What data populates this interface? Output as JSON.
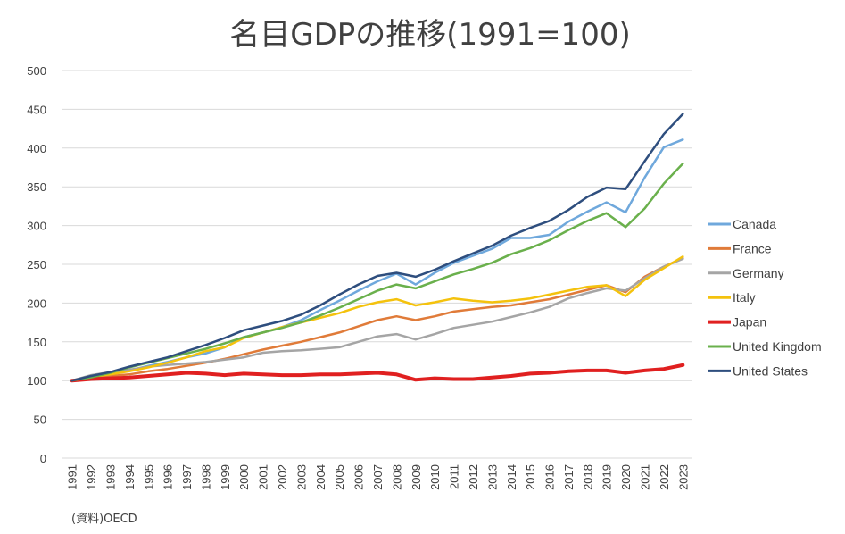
{
  "chart_data": {
    "type": "line",
    "title": "名目GDPの推移(1991=100)",
    "source_note": "(資料)OECD",
    "xlabel": "",
    "ylabel": "",
    "ylim": [
      0,
      500
    ],
    "y_ticks": [
      0,
      50,
      100,
      150,
      200,
      250,
      300,
      350,
      400,
      450,
      500
    ],
    "grid": true,
    "legend_position": "right",
    "x": [
      "1991",
      "1992",
      "1993",
      "1994",
      "1995",
      "1996",
      "1997",
      "1998",
      "1999",
      "2000",
      "2001",
      "2002",
      "2003",
      "2004",
      "2005",
      "2006",
      "2007",
      "2008",
      "2009",
      "2010",
      "2011",
      "2012",
      "2013",
      "2014",
      "2015",
      "2016",
      "2017",
      "2018",
      "2019",
      "2020",
      "2021",
      "2022",
      "2023"
    ],
    "series": [
      {
        "name": "Canada",
        "color": "#6fa8dc",
        "values": [
          100,
          103,
          108,
          113,
          119,
          124,
          130,
          135,
          143,
          156,
          162,
          169,
          178,
          191,
          203,
          216,
          228,
          238,
          224,
          239,
          252,
          261,
          270,
          284,
          284,
          288,
          305,
          318,
          330,
          317,
          362,
          401,
          411
        ]
      },
      {
        "name": "France",
        "color": "#e07b39",
        "values": [
          100,
          104,
          106,
          108,
          112,
          115,
          119,
          123,
          128,
          134,
          140,
          145,
          150,
          156,
          162,
          170,
          178,
          183,
          178,
          183,
          189,
          192,
          195,
          197,
          201,
          205,
          211,
          217,
          223,
          214,
          234,
          247,
          258
        ]
      },
      {
        "name": "Germany",
        "color": "#a5a5a5",
        "values": [
          100,
          107,
          111,
          114,
          118,
          120,
          122,
          124,
          127,
          130,
          136,
          138,
          139,
          141,
          143,
          150,
          157,
          160,
          153,
          160,
          168,
          172,
          176,
          182,
          188,
          195,
          206,
          213,
          219,
          216,
          232,
          247,
          257
        ]
      },
      {
        "name": "Italy",
        "color": "#f4c20d",
        "values": [
          100,
          105,
          108,
          112,
          117,
          123,
          130,
          138,
          143,
          155,
          162,
          169,
          175,
          181,
          187,
          195,
          201,
          205,
          197,
          201,
          206,
          203,
          201,
          203,
          206,
          211,
          216,
          221,
          223,
          209,
          230,
          245,
          260
        ]
      },
      {
        "name": "Japan",
        "color": "#e02020",
        "values": [
          100,
          102,
          103,
          104,
          106,
          108,
          110,
          109,
          107,
          109,
          108,
          107,
          107,
          108,
          108,
          109,
          110,
          108,
          101,
          103,
          102,
          102,
          104,
          106,
          109,
          110,
          112,
          113,
          113,
          110,
          113,
          115,
          120
        ]
      },
      {
        "name": "United Kingdom",
        "color": "#6ab04c",
        "values": [
          100,
          104,
          110,
          117,
          123,
          129,
          135,
          141,
          148,
          156,
          162,
          168,
          175,
          184,
          194,
          205,
          216,
          224,
          219,
          228,
          237,
          244,
          252,
          263,
          271,
          281,
          294,
          306,
          316,
          298,
          322,
          354,
          380
        ]
      },
      {
        "name": "United States",
        "color": "#2e4e7e",
        "values": [
          100,
          106,
          111,
          118,
          124,
          130,
          138,
          146,
          155,
          165,
          171,
          177,
          185,
          197,
          211,
          224,
          235,
          239,
          234,
          243,
          254,
          264,
          274,
          287,
          297,
          306,
          320,
          337,
          349,
          347,
          383,
          418,
          444
        ]
      }
    ]
  }
}
